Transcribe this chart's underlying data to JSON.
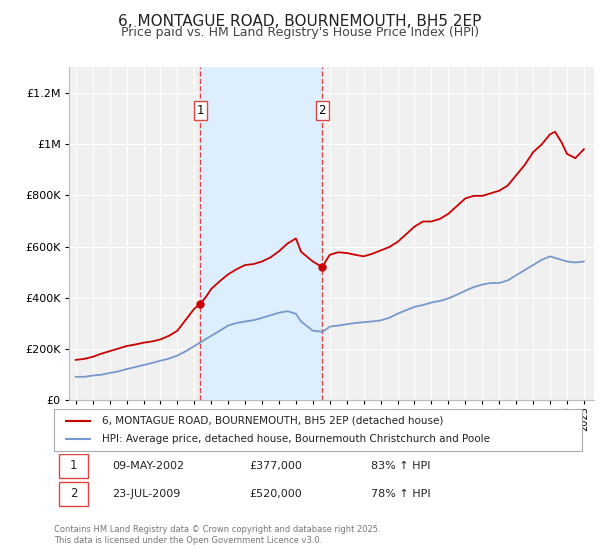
{
  "title": "6, MONTAGUE ROAD, BOURNEMOUTH, BH5 2EP",
  "subtitle": "Price paid vs. HM Land Registry's House Price Index (HPI)",
  "title_fontsize": 11,
  "subtitle_fontsize": 9,
  "background_color": "#ffffff",
  "plot_bg_color": "#f0f0f0",
  "grid_color": "#ffffff",
  "red_line_color": "#cc0000",
  "blue_line_color": "#7799cc",
  "shade_color": "#ddeeff",
  "dashed_line_color": "#dd4444",
  "marker1_date": 2002.36,
  "marker2_date": 2009.56,
  "marker1_value": 377000,
  "marker2_value": 520000,
  "annotation1": [
    "1",
    "09-MAY-2002",
    "£377,000",
    "83% ↑ HPI"
  ],
  "annotation2": [
    "2",
    "23-JUL-2009",
    "£520,000",
    "78% ↑ HPI"
  ],
  "legend_line1": "6, MONTAGUE ROAD, BOURNEMOUTH, BH5 2EP (detached house)",
  "legend_line2": "HPI: Average price, detached house, Bournemouth Christchurch and Poole",
  "footer": "Contains HM Land Registry data © Crown copyright and database right 2025.\nThis data is licensed under the Open Government Licence v3.0.",
  "ylim": [
    0,
    1300000
  ],
  "yticks": [
    0,
    200000,
    400000,
    600000,
    800000,
    1000000,
    1200000
  ],
  "xlim_start": 1994.6,
  "xlim_end": 2025.6,
  "red_x": [
    1995.0,
    1995.5,
    1996.0,
    1996.5,
    1997.0,
    1997.5,
    1998.0,
    1998.5,
    1999.0,
    1999.5,
    2000.0,
    2000.5,
    2001.0,
    2001.5,
    2002.0,
    2002.36,
    2002.7,
    2003.0,
    2003.5,
    2004.0,
    2004.5,
    2005.0,
    2005.5,
    2006.0,
    2006.5,
    2007.0,
    2007.5,
    2008.0,
    2008.3,
    2009.0,
    2009.56,
    2009.8,
    2010.0,
    2010.5,
    2011.0,
    2011.5,
    2012.0,
    2012.5,
    2013.0,
    2013.5,
    2014.0,
    2014.5,
    2015.0,
    2015.5,
    2016.0,
    2016.5,
    2017.0,
    2017.5,
    2018.0,
    2018.5,
    2019.0,
    2019.5,
    2020.0,
    2020.5,
    2021.0,
    2021.5,
    2022.0,
    2022.5,
    2023.0,
    2023.3,
    2023.7,
    2024.0,
    2024.5,
    2025.0
  ],
  "red_y": [
    158000,
    162000,
    170000,
    182000,
    192000,
    202000,
    212000,
    218000,
    225000,
    230000,
    238000,
    252000,
    272000,
    315000,
    358000,
    377000,
    405000,
    435000,
    465000,
    492000,
    512000,
    528000,
    532000,
    542000,
    558000,
    582000,
    612000,
    632000,
    580000,
    542000,
    520000,
    548000,
    568000,
    578000,
    575000,
    568000,
    562000,
    572000,
    585000,
    598000,
    618000,
    648000,
    678000,
    698000,
    698000,
    708000,
    728000,
    758000,
    788000,
    798000,
    798000,
    808000,
    818000,
    838000,
    878000,
    918000,
    968000,
    998000,
    1038000,
    1048000,
    1005000,
    962000,
    945000,
    980000
  ],
  "blue_x": [
    1995.0,
    1995.5,
    1996.0,
    1996.5,
    1997.0,
    1997.5,
    1998.0,
    1998.5,
    1999.0,
    1999.5,
    2000.0,
    2000.5,
    2001.0,
    2001.5,
    2002.0,
    2002.5,
    2003.0,
    2003.5,
    2004.0,
    2004.5,
    2005.0,
    2005.5,
    2006.0,
    2006.5,
    2007.0,
    2007.5,
    2008.0,
    2008.3,
    2009.0,
    2009.56,
    2009.8,
    2010.0,
    2010.5,
    2011.0,
    2011.5,
    2012.0,
    2012.5,
    2013.0,
    2013.5,
    2014.0,
    2014.5,
    2015.0,
    2015.5,
    2016.0,
    2016.5,
    2017.0,
    2017.5,
    2018.0,
    2018.5,
    2019.0,
    2019.5,
    2020.0,
    2020.5,
    2021.0,
    2021.5,
    2022.0,
    2022.5,
    2023.0,
    2023.5,
    2024.0,
    2024.5,
    2025.0
  ],
  "blue_y": [
    92000,
    92000,
    97000,
    100000,
    107000,
    113000,
    122000,
    130000,
    138000,
    146000,
    155000,
    163000,
    175000,
    192000,
    212000,
    232000,
    252000,
    272000,
    292000,
    302000,
    308000,
    313000,
    322000,
    332000,
    342000,
    348000,
    338000,
    308000,
    272000,
    268000,
    278000,
    288000,
    292000,
    297000,
    302000,
    305000,
    308000,
    312000,
    322000,
    338000,
    352000,
    365000,
    372000,
    382000,
    388000,
    398000,
    412000,
    428000,
    442000,
    452000,
    458000,
    458000,
    468000,
    488000,
    508000,
    528000,
    548000,
    562000,
    552000,
    542000,
    538000,
    542000
  ]
}
